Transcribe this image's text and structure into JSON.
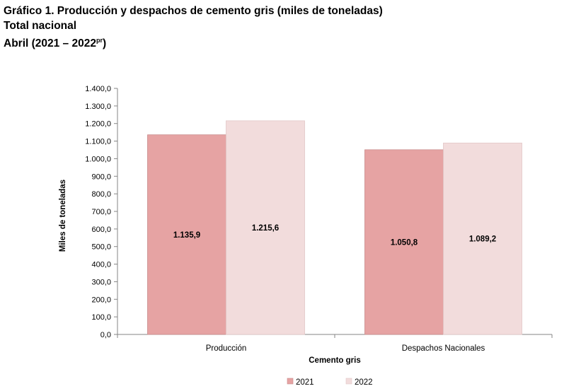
{
  "header": {
    "title_line1": "Gráfico 1. Producción y despachos de cemento gris (miles de toneladas)",
    "title_line2": "Total nacional",
    "title_line3_main": "Abril (2021 – 2022",
    "title_line3_sup": "pr",
    "title_line3_end": ")"
  },
  "chart_data": {
    "type": "bar",
    "title": "Gráfico 1. Producción y despachos de cemento gris (miles de toneladas)",
    "subtitle": "Total nacional · Abril (2021 – 2022pr)",
    "categories": [
      "Producción",
      "Despachos Nacionales"
    ],
    "series": [
      {
        "name": "2021",
        "values": [
          1135.9,
          1050.8
        ],
        "labels": [
          "1.135,9",
          "1.050,8"
        ],
        "color": "#e6a3a3"
      },
      {
        "name": "2022",
        "values": [
          1215.6,
          1089.2
        ],
        "labels": [
          "1.215,6",
          "1.089,2"
        ],
        "color": "#f2dcdc"
      }
    ],
    "xlabel": "Cemento gris",
    "ylabel": "Miles de toneladas",
    "ylim": [
      0,
      1400
    ],
    "yticks": [
      "0,0",
      "100,0",
      "200,0",
      "300,0",
      "400,0",
      "500,0",
      "600,0",
      "700,0",
      "800,0",
      "900,0",
      "1.000,0",
      "1.100,0",
      "1.200,0",
      "1.300,0",
      "1.400,0"
    ],
    "grid": false,
    "legend": "bottom-center",
    "axis_color": "#868686"
  }
}
